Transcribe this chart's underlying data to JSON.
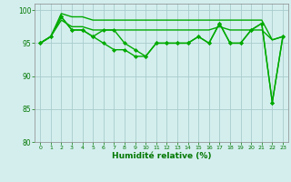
{
  "xlabel": "Humidité relative (%)",
  "background_color": "#d4eeee",
  "grid_color": "#aacccc",
  "line_color": "#00aa00",
  "marker": "D",
  "marker_size": 2.0,
  "line_width": 1.0,
  "xlim": [
    -0.5,
    23.5
  ],
  "ylim": [
    80,
    101
  ],
  "yticks": [
    80,
    85,
    90,
    95,
    100
  ],
  "xticks": [
    0,
    1,
    2,
    3,
    4,
    5,
    6,
    7,
    8,
    9,
    10,
    11,
    12,
    13,
    14,
    15,
    16,
    17,
    18,
    19,
    20,
    21,
    22,
    23
  ],
  "series_marker": [
    [
      95,
      96,
      99,
      97,
      97,
      96,
      97,
      97,
      95,
      94,
      93,
      95,
      95,
      95,
      95,
      96,
      95,
      98,
      95,
      95,
      97,
      98,
      86,
      96
    ],
    [
      95,
      96,
      99,
      97,
      97,
      96,
      95,
      94,
      94,
      93,
      93,
      95,
      95,
      95,
      95,
      96,
      95,
      98,
      95,
      95,
      97,
      98,
      86,
      96
    ]
  ],
  "series_no_marker": [
    [
      95,
      96,
      98.5,
      97.5,
      97.5,
      97,
      97,
      97,
      97,
      97,
      97,
      97,
      97,
      97,
      97,
      97,
      97,
      97.5,
      97,
      97,
      97,
      97,
      95.5,
      96
    ],
    [
      95,
      96,
      99.5,
      99,
      99,
      98.5,
      98.5,
      98.5,
      98.5,
      98.5,
      98.5,
      98.5,
      98.5,
      98.5,
      98.5,
      98.5,
      98.5,
      98.5,
      98.5,
      98.5,
      98.5,
      98.5,
      95.5,
      96
    ]
  ]
}
